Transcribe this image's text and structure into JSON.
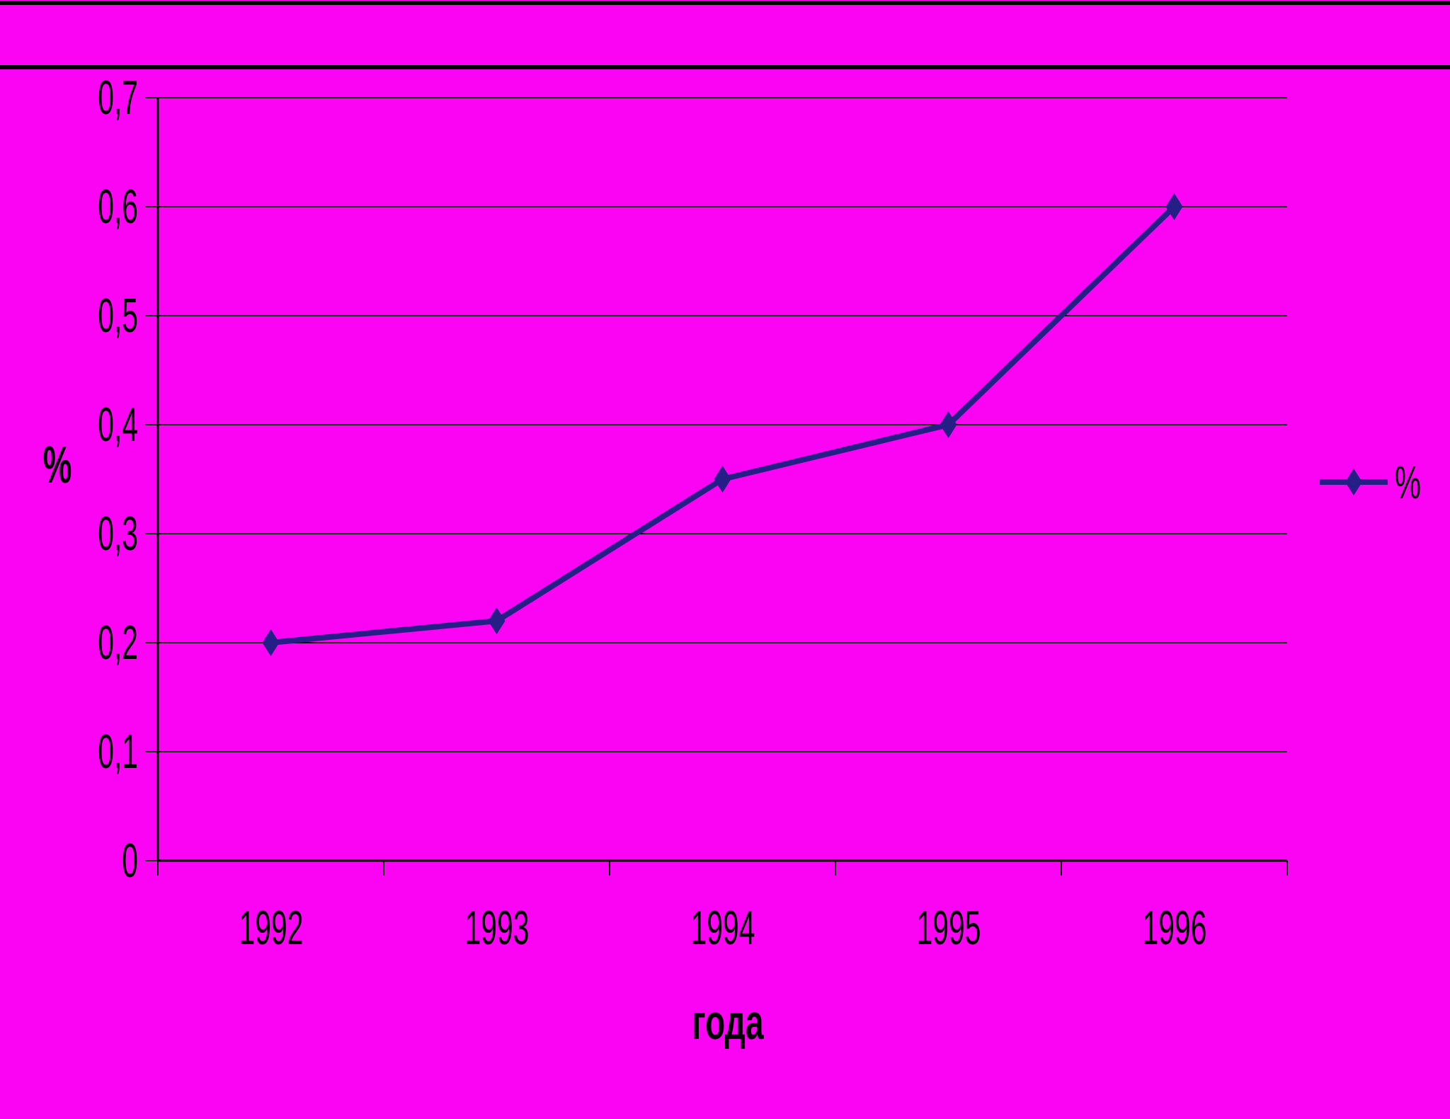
{
  "slide": {
    "background_color": "#FB03F3",
    "top_rule_color": "#000000"
  },
  "chart_data": {
    "type": "line",
    "title": "",
    "categories": [
      "1992",
      "1993",
      "1994",
      "1995",
      "1996"
    ],
    "series": [
      {
        "name": "%",
        "values": [
          0.2,
          0.22,
          0.35,
          0.4,
          0.6
        ],
        "color": "#241E86",
        "marker": "diamond"
      }
    ],
    "xlabel": "года",
    "ylabel": "%",
    "ylim": [
      0,
      0.7
    ],
    "y_tick_values": [
      0,
      0.1,
      0.2,
      0.3,
      0.4,
      0.5,
      0.6,
      0.7
    ],
    "y_tick_labels": [
      "0",
      "0,1",
      "0,2",
      "0,3",
      "0,4",
      "0,5",
      "0,6",
      "0,7"
    ],
    "decimal_separator": ",",
    "grid": "horizontal",
    "legend": {
      "position": "right",
      "label": "%"
    },
    "colors": {
      "gridline": "#000000",
      "axis": "#000000",
      "text": "#000000"
    }
  }
}
